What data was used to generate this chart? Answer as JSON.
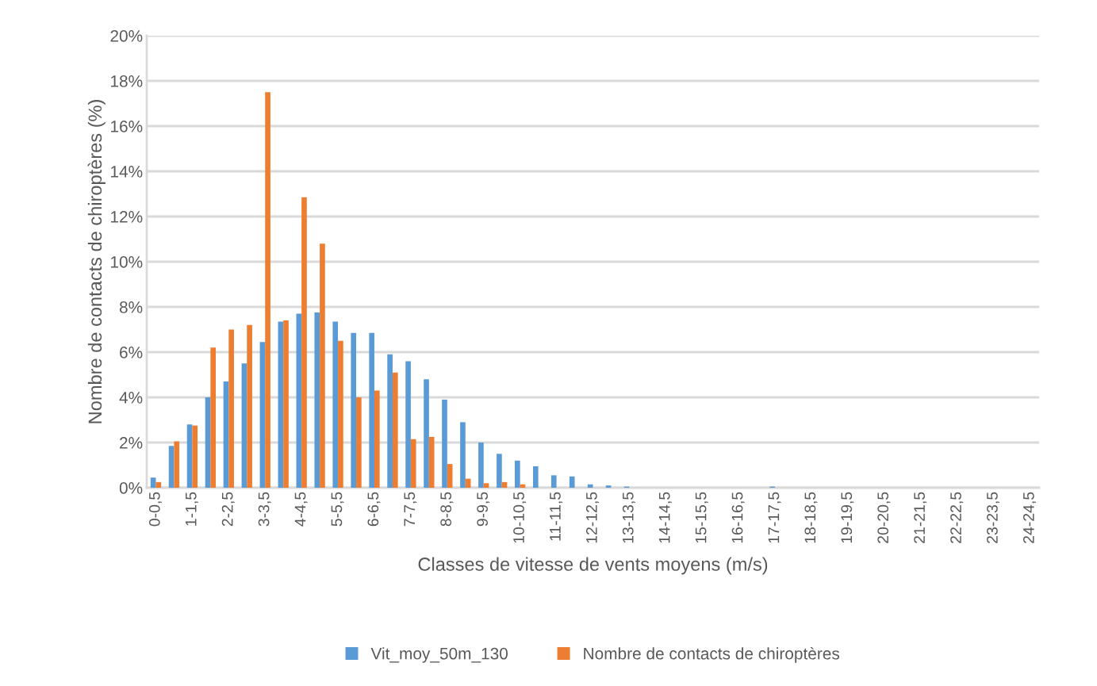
{
  "chart_data": {
    "type": "bar",
    "xlabel": "Classes de vitesse de vents moyens (m/s)",
    "ylabel": "Nombre de contacts de chiroptères (%)",
    "categories": [
      "0-0,5",
      null,
      "1-1,5",
      null,
      "2-2,5",
      null,
      "3-3,5",
      null,
      "4-4,5",
      null,
      "5-5,5",
      null,
      "6-6,5",
      null,
      "7-7,5",
      null,
      "8-8,5",
      null,
      "9-9,5",
      null,
      "10-10,5",
      null,
      "11-11,5",
      null,
      "12-12,5",
      null,
      "13-13,5",
      null,
      "14-14,5",
      null,
      "15-15,5",
      null,
      "16-16,5",
      null,
      "17-17,5",
      null,
      "18-18,5",
      null,
      "19-19,5",
      null,
      "20-20,5",
      null,
      "21-21,5",
      null,
      "22-22,5",
      null,
      "23-23,5",
      null,
      "24-24,5"
    ],
    "series": [
      {
        "name": "Vit_moy_50m_130",
        "color": "#5b9bd5",
        "values": [
          0.45,
          1.85,
          2.8,
          4.0,
          4.7,
          5.5,
          6.45,
          7.35,
          7.7,
          7.75,
          7.35,
          6.85,
          6.85,
          5.9,
          5.6,
          4.8,
          3.9,
          2.9,
          2.0,
          1.5,
          1.2,
          0.95,
          0.55,
          0.5,
          0.15,
          0.1,
          0.05,
          0,
          0,
          0,
          0,
          0,
          0,
          0,
          0.05,
          0,
          0,
          0,
          0,
          0,
          0,
          0,
          0,
          0,
          0,
          0,
          0,
          0,
          0
        ]
      },
      {
        "name": "Nombre de contacts de chiroptères",
        "color": "#ed7d31",
        "values": [
          0.25,
          2.05,
          2.75,
          6.2,
          7.0,
          7.2,
          17.5,
          7.4,
          12.85,
          10.8,
          6.5,
          4.0,
          4.3,
          5.1,
          2.15,
          2.25,
          1.05,
          0.4,
          0.2,
          0.25,
          0.15,
          0,
          0,
          0,
          0,
          0,
          0,
          0,
          0,
          0,
          0,
          0,
          0,
          0,
          0,
          0,
          0,
          0,
          0,
          0,
          0,
          0,
          0,
          0,
          0,
          0,
          0,
          0,
          0
        ]
      }
    ],
    "ylim": [
      0,
      20
    ],
    "yticks": [
      {
        "value": 0,
        "label": "0%"
      },
      {
        "value": 2,
        "label": "2%"
      },
      {
        "value": 4,
        "label": "4%"
      },
      {
        "value": 6,
        "label": "6%"
      },
      {
        "value": 8,
        "label": "8%"
      },
      {
        "value": 10,
        "label": "10%"
      },
      {
        "value": 12,
        "label": "12%"
      },
      {
        "value": 14,
        "label": "14%"
      },
      {
        "value": 16,
        "label": "16%"
      },
      {
        "value": 18,
        "label": "18%"
      },
      {
        "value": 20,
        "label": "20%"
      }
    ],
    "grid": "y",
    "legend": "bottom"
  }
}
